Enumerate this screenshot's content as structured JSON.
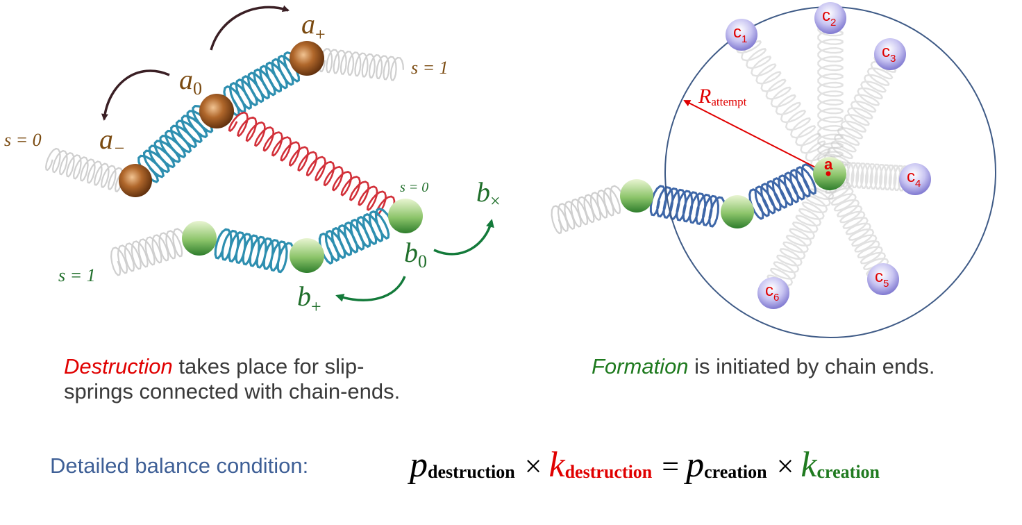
{
  "diagram": {
    "left_panel": {
      "bead_labels": {
        "a_minus": {
          "base": "a",
          "sub": "−"
        },
        "a_zero": {
          "base": "a",
          "sub": "0"
        },
        "a_plus": {
          "base": "a",
          "sub": "+"
        },
        "b_zero": {
          "base": "b",
          "sub": "0"
        },
        "b_plus": {
          "base": "b",
          "sub": "+"
        },
        "b_cross": {
          "base": "b",
          "sub": "×"
        }
      },
      "s_labels": {
        "chain_a_left": "s = 0",
        "chain_a_right": "s = 1",
        "chain_b_right": "s = 0",
        "chain_b_left": "s = 1"
      }
    },
    "right_panel": {
      "center_label": "a",
      "radius_label": {
        "base": "R",
        "sub": "attempt"
      },
      "candidates": [
        {
          "base": "c",
          "sub": "1"
        },
        {
          "base": "c",
          "sub": "2"
        },
        {
          "base": "c",
          "sub": "3"
        },
        {
          "base": "c",
          "sub": "4"
        },
        {
          "base": "c",
          "sub": "5"
        },
        {
          "base": "c",
          "sub": "6"
        }
      ]
    }
  },
  "captions": {
    "destruction": {
      "keyword": "Destruction",
      "line1_rest": " takes place for slip-",
      "line2": "springs connected with chain-ends."
    },
    "formation": {
      "keyword": "Formation",
      "rest": " is initiated by chain ends."
    }
  },
  "balance": {
    "label": "Detailed balance condition:",
    "equation": {
      "p": "p",
      "k": "k",
      "sub_destruction": "destruction",
      "sub_creation": "creation",
      "times": "×",
      "equals": "="
    }
  },
  "colors": {
    "brown_label": "#7a4a10",
    "green_label": "#1f6e2a",
    "red": "#e00000",
    "cyan_spring": "#2e8fb0",
    "blue_spring": "#3e67a8",
    "gray_spring": "#cfcfcf",
    "circle": "#3e5a86",
    "arrow_dark": "#3a1f24",
    "arrow_green": "#137a3a"
  }
}
